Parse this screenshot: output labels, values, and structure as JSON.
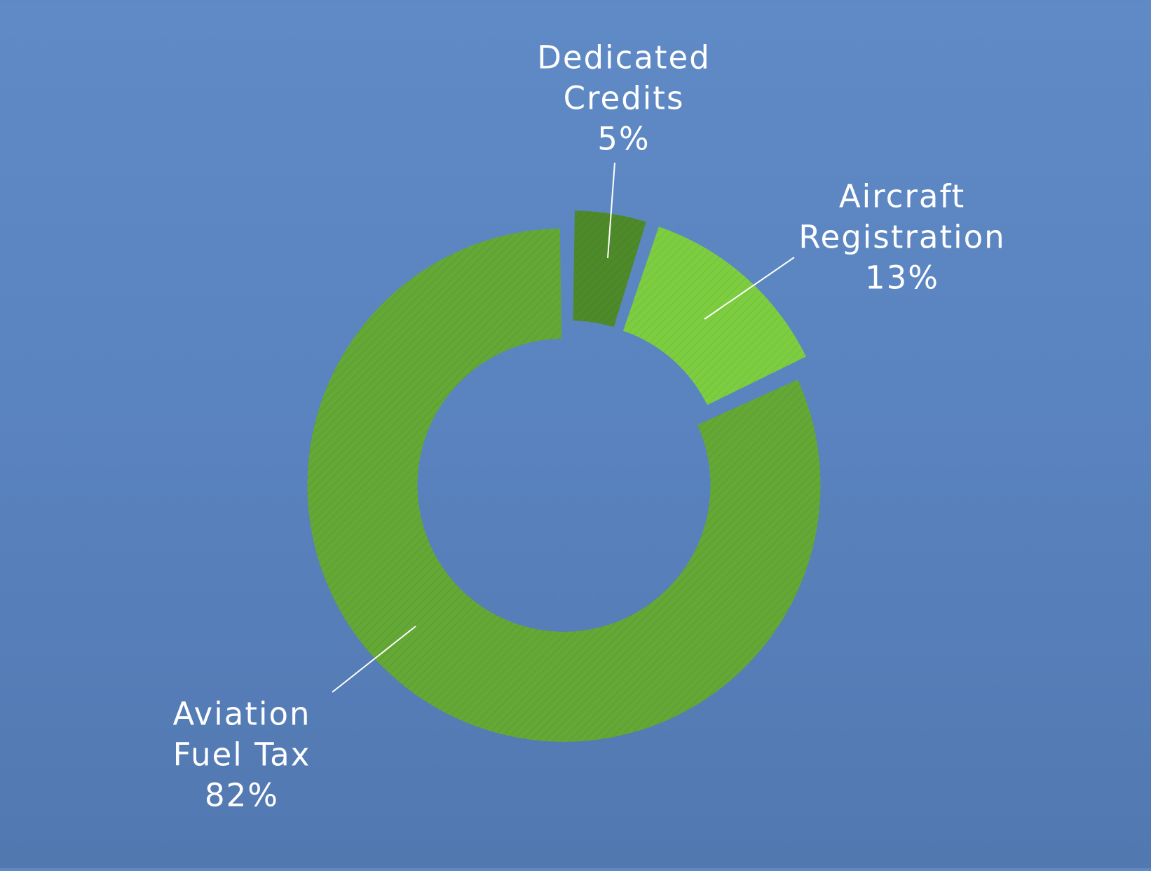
{
  "chart_data": {
    "type": "pie",
    "variant": "donut",
    "start_angle_deg": 0,
    "direction": "clockwise",
    "slices": [
      {
        "label": [
          "Dedicated",
          "Credits"
        ],
        "percent_label": "5%",
        "value": 5,
        "color": "#4e8a2a",
        "exploded": true
      },
      {
        "label": [
          "Aircraft",
          "Registration"
        ],
        "percent_label": "13%",
        "value": 13,
        "color": "#7dcd41",
        "exploded": true
      },
      {
        "label": [
          "Aviation",
          "Fuel Tax"
        ],
        "percent_label": "82%",
        "value": 82,
        "color": "#64a836",
        "exploded": true
      }
    ],
    "legend": "none",
    "data_labels": "outside with leader lines"
  }
}
